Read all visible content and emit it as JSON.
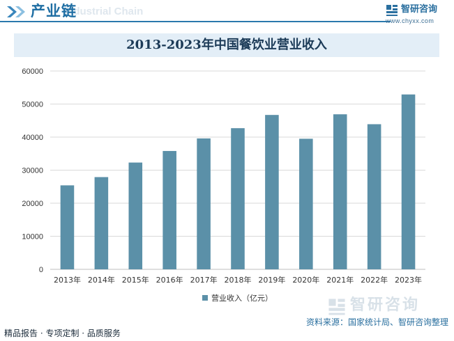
{
  "header": {
    "title": "产业链",
    "watermark": "Industrial Chain"
  },
  "brand": {
    "name": "智研咨询",
    "url": "www.chyxx.com"
  },
  "chart_data": {
    "type": "bar",
    "title": "2013-2023年中国餐饮业营业收入",
    "categories": [
      "2013年",
      "2014年",
      "2015年",
      "2016年",
      "2017年",
      "2018年",
      "2019年",
      "2020年",
      "2021年",
      "2022年",
      "2023年"
    ],
    "series": [
      {
        "name": "营业收入（亿元）",
        "values": [
          25400,
          27900,
          32300,
          35800,
          39600,
          42700,
          46700,
          39500,
          46900,
          43900,
          52900
        ]
      }
    ],
    "ylim": [
      0,
      60000
    ],
    "yticks": [
      0,
      10000,
      20000,
      30000,
      40000,
      50000,
      60000
    ],
    "grid": true,
    "legend_position": "bottom",
    "color": "#5b90a8"
  },
  "footer": {
    "left": "精品报告 · 专项定制 · 品质服务",
    "source": "资料来源：国家统计局、智研咨询整理",
    "watermark_brand": "智研咨询"
  }
}
